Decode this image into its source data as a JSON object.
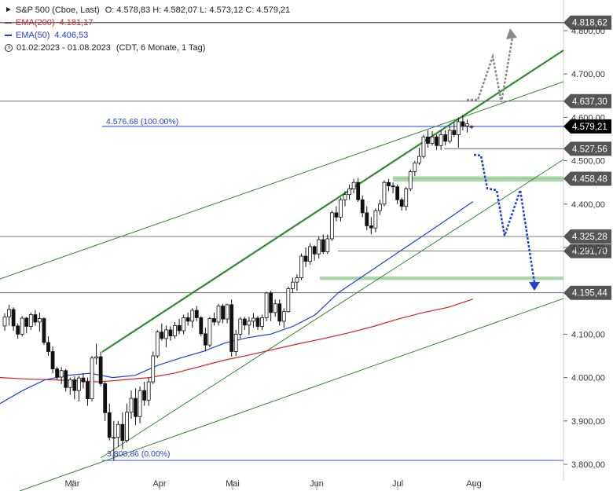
{
  "legend": {
    "instrument": "S&P 500 (Cboe, Last)",
    "ohlc": "O: 4.578,83  H: 4.582,07  L: 4.573,12  C: 4.579,21",
    "ema200_label": "EMA(200)",
    "ema200_value": "4.181,17",
    "ema50_label": "EMA(50)",
    "ema50_value": "4.406,53",
    "range": "01.02.2023 - 01.08.2023",
    "range_info": "(CDT, 6 Monate, 1 Tag)"
  },
  "colors": {
    "up_candle": "#ffffff",
    "down_candle": "#111111",
    "ema200": "#d62020",
    "ema50": "#1f3fd6",
    "trend_green": "#2e8b2e",
    "zone_green": "#9ccf9c",
    "fib_blue": "#1f3fd6",
    "projection_blue": "#1f3fd6",
    "projection_grey": "#888888"
  },
  "annotations": {
    "fib_100": "4.576,68 (100.00%)",
    "fib_0": "3.808,86 (0.00%)"
  },
  "chart_data": {
    "type": "line",
    "title": "S&P 500 (Cboe, Last)",
    "ylim": [
      3780,
      4860
    ],
    "x_ticks": [
      "Mär",
      "Apr",
      "Mai",
      "Jun",
      "Jul",
      "Aug"
    ],
    "y_ticks": [
      "4.800,00",
      "4.700,00",
      "4.600,00",
      "4.500,00",
      "4.400,00",
      "4.300,00",
      "4.100,00",
      "4.000,00",
      "3.900,00",
      "3.800,00"
    ],
    "y_tick_values": [
      4800,
      4700,
      4600,
      4500,
      4400,
      4300,
      4100,
      4000,
      3900,
      3800
    ],
    "horizontal_levels": [
      {
        "value": 4818.62,
        "label": "4.818,62",
        "style": "dark"
      },
      {
        "value": 4637.3,
        "label": "4.637,30",
        "style": "dark"
      },
      {
        "value": 4579.21,
        "label": "4.579,21",
        "style": "current"
      },
      {
        "value": 4527.56,
        "label": "4.527,56",
        "style": "dark"
      },
      {
        "value": 4458.48,
        "label": "4.458,48",
        "style": "dark"
      },
      {
        "value": 4325.28,
        "label": "4.325,28",
        "style": "dark"
      },
      {
        "value": 4291.7,
        "label": "4.291,70",
        "style": "dark"
      },
      {
        "value": 4195.44,
        "label": "4.195,44",
        "style": "dark"
      }
    ],
    "series": [
      {
        "name": "S&P 500",
        "type": "candlestick",
        "ohlc": [
          [
            4119,
            4148,
            4108,
            4140
          ],
          [
            4140,
            4168,
            4120,
            4157
          ],
          [
            4157,
            4162,
            4108,
            4119
          ],
          [
            4119,
            4125,
            4090,
            4100
          ],
          [
            4100,
            4142,
            4095,
            4137
          ],
          [
            4137,
            4140,
            4102,
            4118
          ],
          [
            4118,
            4150,
            4110,
            4145
          ],
          [
            4145,
            4156,
            4120,
            4128
          ],
          [
            4128,
            4150,
            4106,
            4136
          ],
          [
            4136,
            4139,
            4075,
            4081
          ],
          [
            4081,
            4095,
            4050,
            4060
          ],
          [
            4060,
            4072,
            4010,
            4020
          ],
          [
            4020,
            4025,
            3995,
            4001
          ],
          [
            4001,
            4024,
            3985,
            4016
          ],
          [
            4016,
            4020,
            3968,
            3977
          ],
          [
            3977,
            4000,
            3960,
            3995
          ],
          [
            3995,
            4003,
            3950,
            3970
          ],
          [
            3970,
            4004,
            3945,
            3999
          ],
          [
            3999,
            4010,
            3975,
            3990
          ],
          [
            3990,
            4000,
            3935,
            3951
          ],
          [
            3951,
            4050,
            3945,
            4045
          ],
          [
            4045,
            4078,
            4030,
            4048
          ],
          [
            4048,
            4060,
            3980,
            3986
          ],
          [
            3986,
            3990,
            3900,
            3919
          ],
          [
            3919,
            3940,
            3855,
            3862
          ],
          [
            3862,
            3900,
            3808,
            3862
          ],
          [
            3862,
            3900,
            3840,
            3892
          ],
          [
            3892,
            3920,
            3835,
            3855
          ],
          [
            3855,
            3940,
            3850,
            3920
          ],
          [
            3920,
            3970,
            3905,
            3952
          ],
          [
            3952,
            3975,
            3890,
            3910
          ],
          [
            3910,
            3980,
            3895,
            3970
          ],
          [
            3970,
            3990,
            3935,
            3948
          ],
          [
            3948,
            4000,
            3935,
            3990
          ],
          [
            3990,
            4060,
            3985,
            4050
          ],
          [
            4050,
            4110,
            4045,
            4105
          ],
          [
            4105,
            4125,
            4085,
            4090
          ],
          [
            4090,
            4120,
            4070,
            4110
          ],
          [
            4110,
            4118,
            4085,
            4096
          ],
          [
            4096,
            4128,
            4090,
            4120
          ],
          [
            4120,
            4135,
            4100,
            4108
          ],
          [
            4108,
            4145,
            4100,
            4138
          ],
          [
            4138,
            4150,
            4120,
            4130
          ],
          [
            4130,
            4160,
            4115,
            4155
          ],
          [
            4155,
            4165,
            4130,
            4138
          ],
          [
            4138,
            4142,
            4095,
            4101
          ],
          [
            4101,
            4115,
            4060,
            4075
          ],
          [
            4075,
            4140,
            4070,
            4136
          ],
          [
            4136,
            4150,
            4120,
            4128
          ],
          [
            4128,
            4170,
            4120,
            4165
          ],
          [
            4165,
            4170,
            4125,
            4135
          ],
          [
            4135,
            4170,
            4125,
            4168
          ],
          [
            4168,
            4180,
            4048,
            4060
          ],
          [
            4060,
            4110,
            4050,
            4100
          ],
          [
            4100,
            4140,
            4090,
            4135
          ],
          [
            4135,
            4140,
            4110,
            4121
          ],
          [
            4121,
            4140,
            4098,
            4130
          ],
          [
            4130,
            4148,
            4115,
            4137
          ],
          [
            4137,
            4142,
            4110,
            4118
          ],
          [
            4118,
            4145,
            4110,
            4138
          ],
          [
            4138,
            4198,
            4130,
            4195
          ],
          [
            4195,
            4200,
            4130,
            4150
          ],
          [
            4150,
            4180,
            4140,
            4170
          ],
          [
            4170,
            4180,
            4120,
            4130
          ],
          [
            4130,
            4160,
            4115,
            4152
          ],
          [
            4152,
            4210,
            4150,
            4205
          ],
          [
            4205,
            4230,
            4195,
            4220
          ],
          [
            4220,
            4238,
            4200,
            4230
          ],
          [
            4230,
            4286,
            4225,
            4280
          ],
          [
            4280,
            4300,
            4255,
            4268
          ],
          [
            4268,
            4310,
            4260,
            4302
          ],
          [
            4302,
            4305,
            4270,
            4285
          ],
          [
            4285,
            4325,
            4275,
            4318
          ],
          [
            4318,
            4330,
            4285,
            4290
          ],
          [
            4290,
            4330,
            4285,
            4320
          ],
          [
            4320,
            4385,
            4315,
            4380
          ],
          [
            4380,
            4395,
            4360,
            4370
          ],
          [
            4370,
            4415,
            4360,
            4410
          ],
          [
            4410,
            4430,
            4395,
            4422
          ],
          [
            4422,
            4445,
            4410,
            4435
          ],
          [
            4435,
            4458,
            4425,
            4450
          ],
          [
            4450,
            4460,
            4405,
            4410
          ],
          [
            4410,
            4420,
            4370,
            4380
          ],
          [
            4380,
            4395,
            4340,
            4350
          ],
          [
            4350,
            4370,
            4330,
            4345
          ],
          [
            4345,
            4390,
            4335,
            4385
          ],
          [
            4385,
            4410,
            4375,
            4400
          ],
          [
            4400,
            4455,
            4395,
            4450
          ],
          [
            4450,
            4458,
            4430,
            4442
          ],
          [
            4442,
            4450,
            4425,
            4440
          ],
          [
            4440,
            4445,
            4400,
            4410
          ],
          [
            4410,
            4415,
            4385,
            4395
          ],
          [
            4395,
            4440,
            4385,
            4435
          ],
          [
            4435,
            4480,
            4430,
            4475
          ],
          [
            4475,
            4500,
            4465,
            4495
          ],
          [
            4495,
            4530,
            4490,
            4510
          ],
          [
            4510,
            4560,
            4505,
            4555
          ],
          [
            4555,
            4570,
            4530,
            4540
          ],
          [
            4540,
            4568,
            4535,
            4555
          ],
          [
            4555,
            4560,
            4525,
            4535
          ],
          [
            4535,
            4570,
            4525,
            4560
          ],
          [
            4560,
            4570,
            4535,
            4545
          ],
          [
            4545,
            4580,
            4540,
            4570
          ],
          [
            4570,
            4588,
            4555,
            4560
          ],
          [
            4560,
            4600,
            4530,
            4590
          ],
          [
            4590,
            4605,
            4570,
            4580
          ],
          [
            4580,
            4595,
            4565,
            4585
          ],
          [
            4579,
            4582,
            4573,
            4579
          ]
        ]
      },
      {
        "name": "EMA(200)",
        "values": [
          4000,
          3997,
          3995,
          3993,
          3990,
          3995,
          4000,
          4010,
          4025,
          4040,
          4052,
          4065,
          4078,
          4090,
          4103,
          4118,
          4135,
          4150,
          4162,
          4181
        ]
      },
      {
        "name": "EMA(50)",
        "values": [
          3940,
          3970,
          3995,
          4005,
          4010,
          4000,
          4005,
          4028,
          4045,
          4060,
          4080,
          4092,
          4100,
          4118,
          4145,
          4195,
          4230,
          4265,
          4300,
          4335,
          4370,
          4406
        ]
      }
    ]
  }
}
